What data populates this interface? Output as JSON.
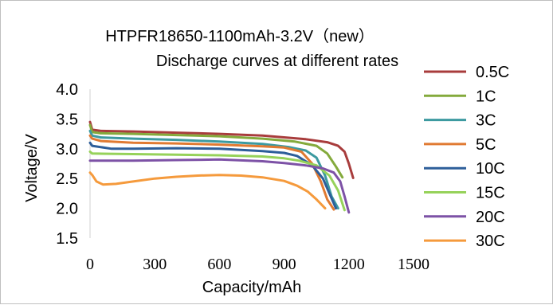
{
  "chart_data": {
    "type": "line",
    "title": "HTPFR18650-1100mAh-3.2V（new）",
    "subtitle": "Discharge curves at different rates",
    "xlabel": "Capacity/mAh",
    "ylabel": "Voltage/V",
    "xlim": [
      0,
      1500
    ],
    "ylim": [
      1.5,
      4.0
    ],
    "xticks": [
      "0",
      "300",
      "600",
      "900",
      "1200",
      "1500"
    ],
    "yticks": [
      "4.0",
      "3.5",
      "3.0",
      "2.5",
      "2.0",
      "1.5"
    ],
    "grid": false,
    "legend_position": "right",
    "series": [
      {
        "name": "0.5C",
        "color": "#a83c3c",
        "points": [
          [
            0,
            3.45
          ],
          [
            10,
            3.32
          ],
          [
            50,
            3.3
          ],
          [
            200,
            3.29
          ],
          [
            400,
            3.27
          ],
          [
            600,
            3.25
          ],
          [
            800,
            3.22
          ],
          [
            1000,
            3.16
          ],
          [
            1100,
            3.11
          ],
          [
            1150,
            3.05
          ],
          [
            1180,
            2.95
          ],
          [
            1200,
            2.75
          ],
          [
            1220,
            2.51
          ]
        ]
      },
      {
        "name": "1C",
        "color": "#84aa3c",
        "points": [
          [
            0,
            3.4
          ],
          [
            10,
            3.28
          ],
          [
            50,
            3.26
          ],
          [
            200,
            3.25
          ],
          [
            400,
            3.23
          ],
          [
            600,
            3.21
          ],
          [
            800,
            3.17
          ],
          [
            950,
            3.12
          ],
          [
            1050,
            3.05
          ],
          [
            1100,
            2.92
          ],
          [
            1140,
            2.7
          ],
          [
            1170,
            2.52
          ]
        ]
      },
      {
        "name": "3C",
        "color": "#3c9aa0",
        "points": [
          [
            0,
            3.3
          ],
          [
            10,
            3.22
          ],
          [
            50,
            3.19
          ],
          [
            200,
            3.17
          ],
          [
            400,
            3.15
          ],
          [
            600,
            3.12
          ],
          [
            800,
            3.08
          ],
          [
            920,
            3.03
          ],
          [
            1000,
            2.97
          ],
          [
            1050,
            2.85
          ],
          [
            1090,
            2.55
          ],
          [
            1120,
            2.2
          ],
          [
            1150,
            2.0
          ]
        ]
      },
      {
        "name": "5C",
        "color": "#e07a32",
        "points": [
          [
            0,
            3.22
          ],
          [
            10,
            3.17
          ],
          [
            50,
            3.13
          ],
          [
            200,
            3.1
          ],
          [
            400,
            3.09
          ],
          [
            600,
            3.07
          ],
          [
            800,
            3.04
          ],
          [
            900,
            3.02
          ],
          [
            980,
            2.95
          ],
          [
            1030,
            2.75
          ],
          [
            1070,
            2.45
          ],
          [
            1100,
            2.15
          ],
          [
            1130,
            1.98
          ]
        ]
      },
      {
        "name": "10C",
        "color": "#2d5e9a",
        "points": [
          [
            0,
            3.1
          ],
          [
            10,
            3.05
          ],
          [
            100,
            3.0
          ],
          [
            200,
            3.0
          ],
          [
            400,
            3.01
          ],
          [
            600,
            3.0
          ],
          [
            800,
            2.96
          ],
          [
            900,
            2.93
          ],
          [
            960,
            2.88
          ],
          [
            1030,
            2.72
          ],
          [
            1080,
            2.5
          ],
          [
            1110,
            2.25
          ],
          [
            1140,
            2.0
          ]
        ]
      },
      {
        "name": "15C",
        "color": "#96d25a",
        "points": [
          [
            0,
            2.95
          ],
          [
            10,
            2.92
          ],
          [
            200,
            2.91
          ],
          [
            400,
            2.9
          ],
          [
            600,
            2.89
          ],
          [
            800,
            2.87
          ],
          [
            900,
            2.84
          ],
          [
            970,
            2.8
          ],
          [
            1050,
            2.72
          ],
          [
            1110,
            2.55
          ],
          [
            1150,
            2.3
          ],
          [
            1180,
            1.97
          ]
        ]
      },
      {
        "name": "20C",
        "color": "#7d52a6",
        "points": [
          [
            0,
            2.8
          ],
          [
            200,
            2.8
          ],
          [
            400,
            2.81
          ],
          [
            600,
            2.82
          ],
          [
            800,
            2.79
          ],
          [
            900,
            2.76
          ],
          [
            1000,
            2.72
          ],
          [
            1080,
            2.67
          ],
          [
            1130,
            2.6
          ],
          [
            1160,
            2.45
          ],
          [
            1180,
            2.2
          ],
          [
            1200,
            1.93
          ]
        ]
      },
      {
        "name": "30C",
        "color": "#f59a3c",
        "points": [
          [
            0,
            2.6
          ],
          [
            10,
            2.56
          ],
          [
            30,
            2.45
          ],
          [
            60,
            2.4
          ],
          [
            120,
            2.41
          ],
          [
            200,
            2.45
          ],
          [
            300,
            2.5
          ],
          [
            400,
            2.53
          ],
          [
            500,
            2.55
          ],
          [
            600,
            2.56
          ],
          [
            700,
            2.55
          ],
          [
            800,
            2.52
          ],
          [
            900,
            2.46
          ],
          [
            960,
            2.38
          ],
          [
            1010,
            2.28
          ],
          [
            1050,
            2.15
          ],
          [
            1090,
            2.0
          ]
        ]
      }
    ]
  }
}
